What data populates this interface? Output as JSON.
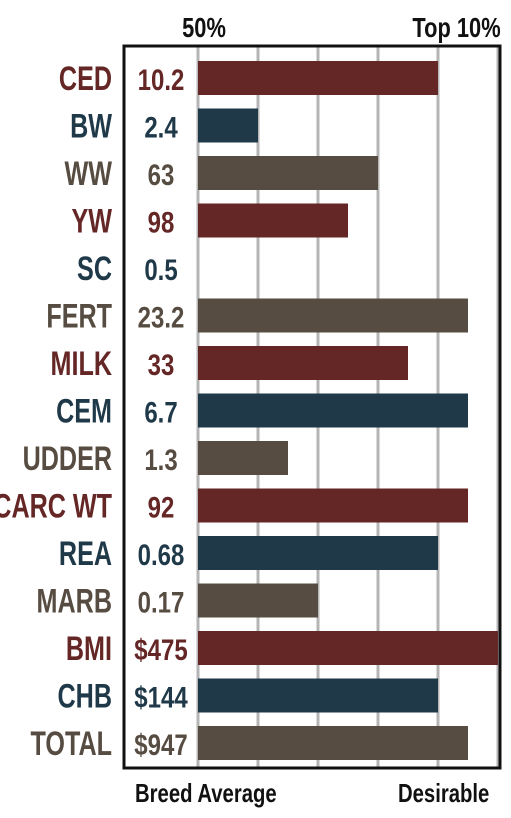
{
  "header": {
    "mid_label": "50%",
    "top_label": "Top 10%"
  },
  "footer": {
    "left_label": "Breed Average",
    "right_label": "Desirable"
  },
  "colors": {
    "red": "#652726",
    "blue": "#1f3949",
    "gray": "#574c41",
    "grid": "#b5b5b5",
    "frame": "#111111"
  },
  "chart_data": {
    "type": "bar",
    "orientation": "horizontal",
    "categories": [
      "CED",
      "BW",
      "WW",
      "YW",
      "SC",
      "FERT",
      "MILK",
      "CEM",
      "UDDER",
      "CARC WT",
      "REA",
      "MARB",
      "BMI",
      "CHB",
      "TOTAL"
    ],
    "display_values": [
      "10.2",
      "2.4",
      "63",
      "98",
      "0.5",
      "23.2",
      "33",
      "6.7",
      "1.3",
      "92",
      "0.68",
      "0.17",
      "$475",
      "$144",
      "$947"
    ],
    "bar_levels": [
      4,
      1,
      3,
      2.5,
      0,
      4.5,
      3.5,
      4.5,
      1.5,
      4.5,
      4,
      2,
      5,
      4,
      4.5
    ],
    "bar_colors": [
      "red",
      "blue",
      "gray",
      "red",
      "blue",
      "gray",
      "red",
      "blue",
      "gray",
      "red",
      "blue",
      "gray",
      "red",
      "blue",
      "gray"
    ],
    "x_range": [
      0,
      5
    ],
    "grid": true
  }
}
